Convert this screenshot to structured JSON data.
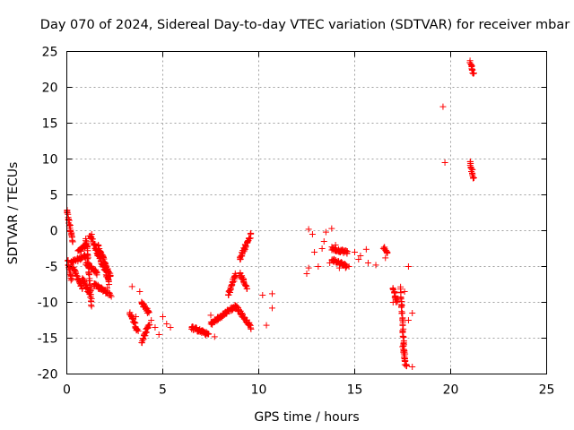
{
  "chart_data": {
    "type": "scatter",
    "title": "Day 070 of 2024, Sidereal Day-to-day VTEC variation (SDTVAR) for receiver mbar",
    "xlabel": "GPS time / hours",
    "ylabel": "SDTVAR / TECUs",
    "xlim": [
      0,
      25
    ],
    "ylim": [
      -20,
      25
    ],
    "xticks": [
      "0",
      "5",
      "10",
      "15",
      "20",
      "25"
    ],
    "yticks": [
      "25",
      "20",
      "15",
      "10",
      "5",
      "0",
      "-5",
      "-10",
      "-15",
      "-20"
    ],
    "xtick_values": [
      0,
      5,
      10,
      15,
      20,
      25
    ],
    "ytick_values": [
      25,
      20,
      15,
      10,
      5,
      0,
      -5,
      -10,
      -15,
      -20
    ],
    "grid": true,
    "marker": "plus",
    "color": "#ff0000",
    "segments": [
      {
        "x0": 0.0,
        "x1": 0.3,
        "y0": 2.8,
        "y1": -1.5
      },
      {
        "x0": 0.05,
        "x1": 0.25,
        "y0": -4.0,
        "y1": -7.0
      },
      {
        "x0": 0.2,
        "x1": 1.0,
        "y0": -4.5,
        "y1": -3.5
      },
      {
        "x0": 0.3,
        "x1": 0.8,
        "y0": -5.0,
        "y1": -8.0
      },
      {
        "x0": 0.6,
        "x1": 1.0,
        "y0": -3.0,
        "y1": -2.0
      },
      {
        "x0": 0.8,
        "x1": 1.2,
        "y0": -6.5,
        "y1": -9.0
      },
      {
        "x0": 1.0,
        "x1": 1.3,
        "y0": -1.0,
        "y1": -10.5
      },
      {
        "x0": 1.0,
        "x1": 1.6,
        "y0": -4.5,
        "y1": -6.0
      },
      {
        "x0": 1.2,
        "x1": 2.2,
        "y0": -0.5,
        "y1": -7.0
      },
      {
        "x0": 1.4,
        "x1": 2.3,
        "y0": -7.5,
        "y1": -9.0
      },
      {
        "x0": 1.6,
        "x1": 2.3,
        "y0": -2.0,
        "y1": -6.5
      },
      {
        "x0": 3.3,
        "x1": 3.7,
        "y0": -11.5,
        "y1": -14.0
      },
      {
        "x0": 3.9,
        "x1": 4.3,
        "y0": -10.0,
        "y1": -11.5
      },
      {
        "x0": 3.9,
        "x1": 4.3,
        "y0": -15.5,
        "y1": -13.0
      },
      {
        "x0": 6.5,
        "x1": 7.4,
        "y0": -13.5,
        "y1": -14.5
      },
      {
        "x0": 7.5,
        "x1": 8.8,
        "y0": -13.0,
        "y1": -10.5
      },
      {
        "x0": 8.4,
        "x1": 8.8,
        "y0": -9.0,
        "y1": -6.0
      },
      {
        "x0": 8.8,
        "x1": 9.6,
        "y0": -10.5,
        "y1": -13.5
      },
      {
        "x0": 9.0,
        "x1": 9.6,
        "y0": -4.0,
        "y1": -0.5
      },
      {
        "x0": 9.0,
        "x1": 9.4,
        "y0": -6.0,
        "y1": -8.0
      },
      {
        "x0": 13.8,
        "x1": 14.6,
        "y0": -2.5,
        "y1": -3.0
      },
      {
        "x0": 13.8,
        "x1": 14.6,
        "y0": -4.0,
        "y1": -5.0
      },
      {
        "x0": 16.5,
        "x1": 16.7,
        "y0": -2.3,
        "y1": -3.0
      },
      {
        "x0": 17.0,
        "x1": 17.2,
        "y0": -8.0,
        "y1": -10.0
      },
      {
        "x0": 17.4,
        "x1": 17.6,
        "y0": -8.0,
        "y1": -18.5
      },
      {
        "x0": 17.5,
        "x1": 17.7,
        "y0": -16.0,
        "y1": -19.0
      },
      {
        "x0": 21.0,
        "x1": 21.2,
        "y0": 9.8,
        "y1": 7.2
      },
      {
        "x0": 21.0,
        "x1": 21.2,
        "y0": 23.5,
        "y1": 21.8
      }
    ],
    "points": [
      [
        1.3,
        -0.5
      ],
      [
        1.7,
        -2.8
      ],
      [
        1.9,
        -5.0
      ],
      [
        2.1,
        -8.0
      ],
      [
        2.2,
        -7.5
      ],
      [
        3.4,
        -7.8
      ],
      [
        3.6,
        -12.0
      ],
      [
        3.8,
        -8.5
      ],
      [
        4.0,
        -10.2
      ],
      [
        4.2,
        -11.5
      ],
      [
        4.4,
        -12.5
      ],
      [
        4.6,
        -13.5
      ],
      [
        4.8,
        -14.5
      ],
      [
        5.0,
        -12.0
      ],
      [
        5.2,
        -13.0
      ],
      [
        5.4,
        -13.5
      ],
      [
        7.5,
        -11.8
      ],
      [
        7.7,
        -14.8
      ],
      [
        8.0,
        -12.2
      ],
      [
        10.2,
        -9.0
      ],
      [
        10.4,
        -13.2
      ],
      [
        10.7,
        -8.8
      ],
      [
        10.7,
        -10.8
      ],
      [
        12.5,
        -6.0
      ],
      [
        12.6,
        -5.2
      ],
      [
        12.6,
        0.2
      ],
      [
        12.8,
        -0.5
      ],
      [
        12.9,
        -3.0
      ],
      [
        13.1,
        -5.0
      ],
      [
        13.3,
        -2.5
      ],
      [
        13.4,
        -1.5
      ],
      [
        13.5,
        -0.2
      ],
      [
        13.7,
        -4.5
      ],
      [
        13.8,
        0.3
      ],
      [
        14.0,
        -2.0
      ],
      [
        14.2,
        -5.2
      ],
      [
        14.6,
        -3.2
      ],
      [
        14.7,
        -5.0
      ],
      [
        15.0,
        -3.0
      ],
      [
        15.2,
        -4.0
      ],
      [
        15.3,
        -3.5
      ],
      [
        15.6,
        -2.6
      ],
      [
        15.7,
        -4.5
      ],
      [
        16.1,
        -4.8
      ],
      [
        16.6,
        -3.8
      ],
      [
        17.0,
        -10.0
      ],
      [
        17.6,
        -8.5
      ],
      [
        17.8,
        -12.5
      ],
      [
        17.8,
        -5.0
      ],
      [
        18.0,
        -11.5
      ],
      [
        18.0,
        -19.0
      ],
      [
        19.6,
        17.3
      ],
      [
        19.7,
        9.5
      ]
    ]
  }
}
